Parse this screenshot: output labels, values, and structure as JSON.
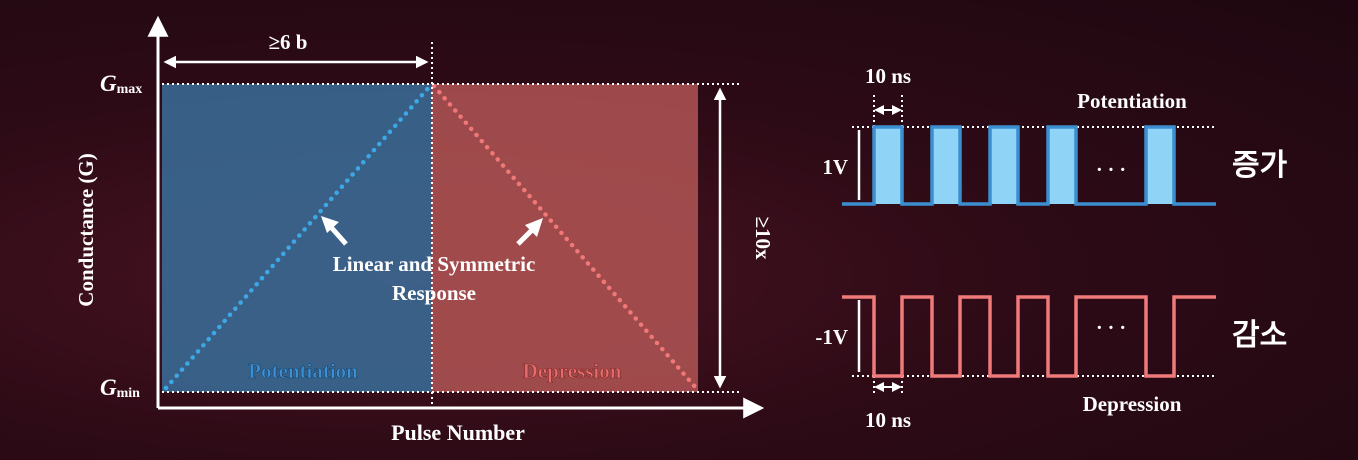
{
  "left_diagram": {
    "y_axis_label": "Conductance (G)",
    "x_axis_label": "Pulse Number",
    "gmax_base": "G",
    "gmax_sub": "max",
    "gmin_base": "G",
    "gmin_sub": "min",
    "bits_label": "≥6 b",
    "ratio_label": "≥10x",
    "potentiation_label": "Potentiation",
    "depression_label": "Depression",
    "annotation_line1": "Linear and Symmetric",
    "annotation_line2": "Response",
    "colors": {
      "potentiation": "#3a6e9a",
      "depression": "#b25555",
      "pot_line": "#3ea8e6",
      "dep_line": "#f07878"
    }
  },
  "right_diagram": {
    "top_pulse_width": "10 ns",
    "top_title": "Potentiation",
    "top_voltage": "1V",
    "top_ellipsis": "· · ·",
    "top_korean": "증가",
    "bottom_voltage": "-1V",
    "bottom_ellipsis": "· · ·",
    "bottom_korean": "감소",
    "bottom_pulse_width": "10 ns",
    "bottom_title": "Depression",
    "colors": {
      "pos_pulse": "#8fd4f7",
      "pos_stroke": "#3b8fd0",
      "neg_stroke": "#ef7a7a"
    }
  }
}
